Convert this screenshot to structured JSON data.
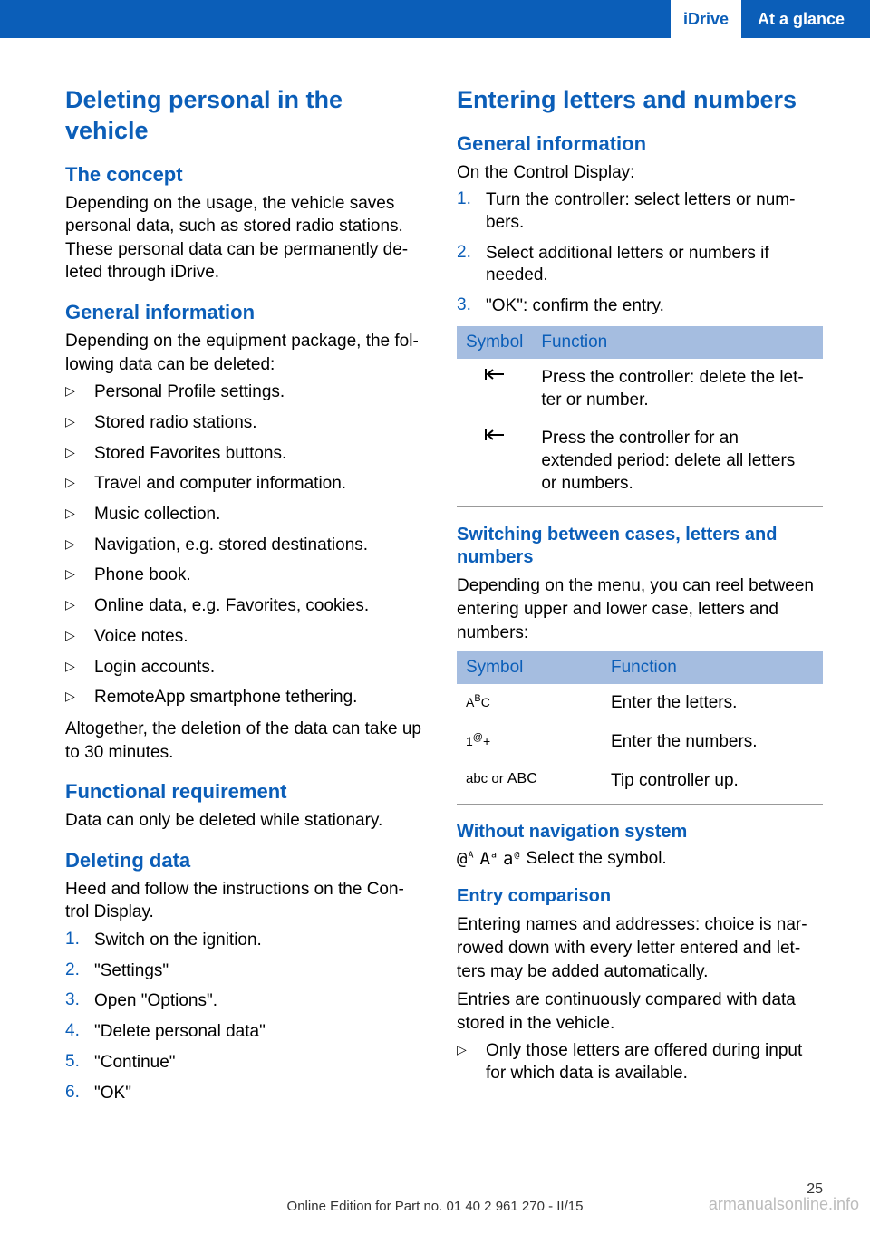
{
  "header": {
    "idrive": "iDrive",
    "section": "At a glance"
  },
  "left": {
    "h1": "Deleting personal in the vehicle",
    "concept_h": "The concept",
    "concept_p": "Depending on the usage, the vehicle saves personal data, such as stored radio stations. These personal data can be permanently de‐ leted through iDrive.",
    "gen_h": "General information",
    "gen_p": "Depending on the equipment package, the fol‐ lowing data can be deleted:",
    "bullets": [
      "Personal Profile settings.",
      "Stored radio stations.",
      "Stored Favorites buttons.",
      "Travel and computer information.",
      "Music collection.",
      "Navigation, e.g. stored destinations.",
      "Phone book.",
      "Online data, e.g. Favorites, cookies.",
      "Voice notes.",
      "Login accounts.",
      "RemoteApp smartphone tethering."
    ],
    "gen_after": "Altogether, the deletion of the data can take up to 30 minutes.",
    "func_h": "Functional requirement",
    "func_p": "Data can only be deleted while stationary.",
    "del_h": "Deleting data",
    "del_p": "Heed and follow the instructions on the Con‐ trol Display.",
    "steps": [
      "Switch on the ignition.",
      "\"Settings\"",
      "Open \"Options\".",
      "\"Delete personal data\"",
      "\"Continue\"",
      "\"OK\""
    ]
  },
  "right": {
    "h1": "Entering letters and numbers",
    "gen_h": "General information",
    "gen_p": "On the Control Display:",
    "steps": [
      "Turn the controller: select letters or num‐ bers.",
      "Select additional letters or numbers if needed.",
      "\"OK\": confirm the entry."
    ],
    "tbl1_head_sym": "Symbol",
    "tbl1_head_fn": "Function",
    "tbl1_rows": [
      {
        "fn": "Press the controller: delete the let‐ ter or number."
      },
      {
        "fn": "Press the controller for an extended period: delete all letters or numbers."
      }
    ],
    "switch_h": "Switching between cases, letters and numbers",
    "switch_p": "Depending on the menu, you can reel between entering upper and lower case, letters and numbers:",
    "tbl2_head_sym": "Symbol",
    "tbl2_head_fn": "Function",
    "tbl2_rows": [
      {
        "sym_html": "<span style='font-size:14px;'>A</span><sup style='font-size:11px;'>B</sup><span style='font-size:14px;'>C</span>",
        "fn": "Enter the letters."
      },
      {
        "sym_html": "<span style='font-size:14px;'>1</span><sup style='font-size:11px;'>@</sup><span style='font-size:14px;'>+</span>",
        "fn": "Enter the numbers."
      },
      {
        "sym_html": "<span style='font-size:15px;'>abc</span> <span style='font-size:15px;'>or</span> <span style='font-size:16px;'>ABC</span>",
        "fn": "Tip controller up."
      }
    ],
    "without_h": "Without navigation system",
    "without_txt": "Select the symbol.",
    "entry_h": "Entry comparison",
    "entry_p1": "Entering names and addresses: choice is nar‐ rowed down with every letter entered and let‐ ters may be added automatically.",
    "entry_p2": "Entries are continuously compared with data stored in the vehicle.",
    "entry_bullet": "Only those letters are offered during input for which data is available."
  },
  "footer": {
    "line": "Online Edition for Part no. 01 40 2 961 270 - II/15",
    "page": "25",
    "watermark": "armanualsonline.info"
  },
  "colors": {
    "blue": "#0b5eb8",
    "header_blue_bg": "#a5bde0"
  }
}
